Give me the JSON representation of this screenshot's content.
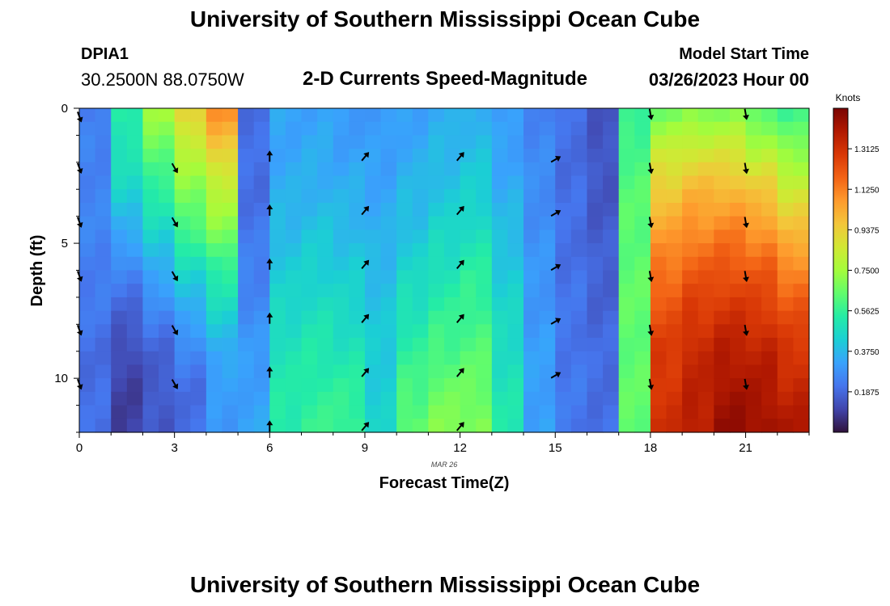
{
  "header": {
    "title": "University of Southern Mississippi Ocean Cube",
    "station_id": "DPIA1",
    "coordinates": "30.2500N  88.0750W",
    "subtitle": "2-D Currents Speed-Magnitude",
    "model_start_label": "Model Start Time",
    "model_start_value": "03/26/2023 Hour 00"
  },
  "footer": {
    "title": "University of Southern Mississippi Ocean Cube"
  },
  "chart_data": {
    "type": "heatmap",
    "title": "2-D Currents Speed-Magnitude",
    "xlabel": "Forecast Time(Z)",
    "ylabel": "Depth (ft)",
    "date_label": "MAR 26",
    "x_ticks": [
      "0",
      "3",
      "6",
      "9",
      "12",
      "15",
      "18",
      "21"
    ],
    "x_tick_values": [
      0,
      3,
      6,
      9,
      12,
      15,
      18,
      21
    ],
    "y_ticks": [
      "0",
      "5",
      "10"
    ],
    "y_tick_values": [
      0,
      5,
      10
    ],
    "xlim": [
      0,
      23
    ],
    "ylim": [
      0,
      12
    ],
    "hours": 23,
    "depth_levels": 12,
    "colorbar": {
      "unit_label": "Knots",
      "ticks": [
        "0.1875",
        "0.3750",
        "0.5625",
        "0.7500",
        "0.9375",
        "1.1250",
        "1.3125"
      ],
      "tick_values": [
        0.1875,
        0.375,
        0.5625,
        0.75,
        0.9375,
        1.125,
        1.3125
      ],
      "min": 0.0,
      "max": 1.5,
      "colors": [
        "#30123b",
        "#4145ab",
        "#4675ed",
        "#39a2fc",
        "#1bcfd4",
        "#24eca6",
        "#61fc6c",
        "#a4fc3b",
        "#d1e834",
        "#f3c63a",
        "#fe9b2d",
        "#f36315",
        "#d93806",
        "#b11901",
        "#7a0402"
      ]
    },
    "speed_profile_knots": [
      [
        0.22,
        0.25,
        0.25,
        0.25,
        0.24,
        0.22,
        0.2,
        0.2,
        0.2
      ],
      [
        0.55,
        0.5,
        0.45,
        0.35,
        0.25,
        0.18,
        0.12,
        0.1,
        0.1
      ],
      [
        0.75,
        0.65,
        0.55,
        0.45,
        0.35,
        0.25,
        0.18,
        0.15,
        0.15
      ],
      [
        0.95,
        0.8,
        0.7,
        0.6,
        0.45,
        0.35,
        0.25,
        0.2,
        0.2
      ],
      [
        1.1,
        0.95,
        0.8,
        0.7,
        0.55,
        0.45,
        0.35,
        0.3,
        0.3
      ],
      [
        0.2,
        0.2,
        0.2,
        0.22,
        0.24,
        0.27,
        0.3,
        0.32,
        0.33
      ],
      [
        0.33,
        0.33,
        0.35,
        0.38,
        0.42,
        0.46,
        0.5,
        0.52,
        0.54
      ],
      [
        0.32,
        0.34,
        0.36,
        0.4,
        0.44,
        0.48,
        0.52,
        0.55,
        0.57
      ],
      [
        0.3,
        0.32,
        0.35,
        0.38,
        0.42,
        0.46,
        0.5,
        0.55,
        0.58
      ],
      [
        0.3,
        0.31,
        0.33,
        0.35,
        0.38,
        0.4,
        0.42,
        0.43,
        0.44
      ],
      [
        0.32,
        0.34,
        0.37,
        0.4,
        0.45,
        0.5,
        0.55,
        0.6,
        0.65
      ],
      [
        0.34,
        0.37,
        0.4,
        0.45,
        0.5,
        0.55,
        0.6,
        0.66,
        0.7
      ],
      [
        0.36,
        0.39,
        0.43,
        0.48,
        0.54,
        0.58,
        0.62,
        0.66,
        0.7
      ],
      [
        0.3,
        0.32,
        0.35,
        0.38,
        0.42,
        0.45,
        0.48,
        0.5,
        0.52
      ],
      [
        0.25,
        0.26,
        0.27,
        0.28,
        0.29,
        0.3,
        0.31,
        0.32,
        0.32
      ],
      [
        0.2,
        0.2,
        0.2,
        0.2,
        0.21,
        0.21,
        0.22,
        0.22,
        0.22
      ],
      [
        0.15,
        0.14,
        0.15,
        0.16,
        0.17,
        0.18,
        0.19,
        0.2,
        0.2
      ],
      [
        0.55,
        0.6,
        0.62,
        0.63,
        0.64,
        0.64,
        0.64,
        0.64,
        0.64
      ],
      [
        0.65,
        0.82,
        0.95,
        1.05,
        1.15,
        1.22,
        1.28,
        1.3,
        1.32
      ],
      [
        0.68,
        0.85,
        1.0,
        1.1,
        1.2,
        1.28,
        1.34,
        1.36,
        1.38
      ],
      [
        0.68,
        0.85,
        1.0,
        1.12,
        1.22,
        1.3,
        1.38,
        1.42,
        1.45
      ],
      [
        0.62,
        0.78,
        0.95,
        1.08,
        1.2,
        1.28,
        1.36,
        1.4,
        1.44
      ],
      [
        0.56,
        0.7,
        0.85,
        0.98,
        1.12,
        1.22,
        1.3,
        1.35,
        1.4
      ]
    ],
    "arrows": [
      {
        "hour": 0,
        "depths": [
          0.3,
          2.2,
          4.2,
          6.2,
          8.2,
          10.2
        ],
        "angle_deg": 160
      },
      {
        "hour": 3,
        "depths": [
          2.2,
          4.2,
          6.2,
          8.2,
          10.2
        ],
        "angle_deg": 150
      },
      {
        "hour": 6,
        "depths": [
          1.8,
          3.8,
          5.8,
          7.8,
          9.8,
          11.8
        ],
        "angle_deg": 0
      },
      {
        "hour": 9,
        "depths": [
          1.8,
          3.8,
          5.8,
          7.8,
          9.8,
          11.8
        ],
        "angle_deg": 40
      },
      {
        "hour": 12,
        "depths": [
          1.8,
          3.8,
          5.8,
          7.8,
          9.8,
          11.8
        ],
        "angle_deg": 40
      },
      {
        "hour": 15,
        "depths": [
          1.9,
          3.9,
          5.9,
          7.9,
          9.9
        ],
        "angle_deg": 60
      },
      {
        "hour": 18,
        "depths": [
          0.2,
          2.2,
          4.2,
          6.2,
          8.2,
          10.2
        ],
        "angle_deg": 170
      },
      {
        "hour": 21,
        "depths": [
          0.2,
          2.2,
          4.2,
          6.2,
          8.2,
          10.2
        ],
        "angle_deg": 170
      }
    ]
  }
}
